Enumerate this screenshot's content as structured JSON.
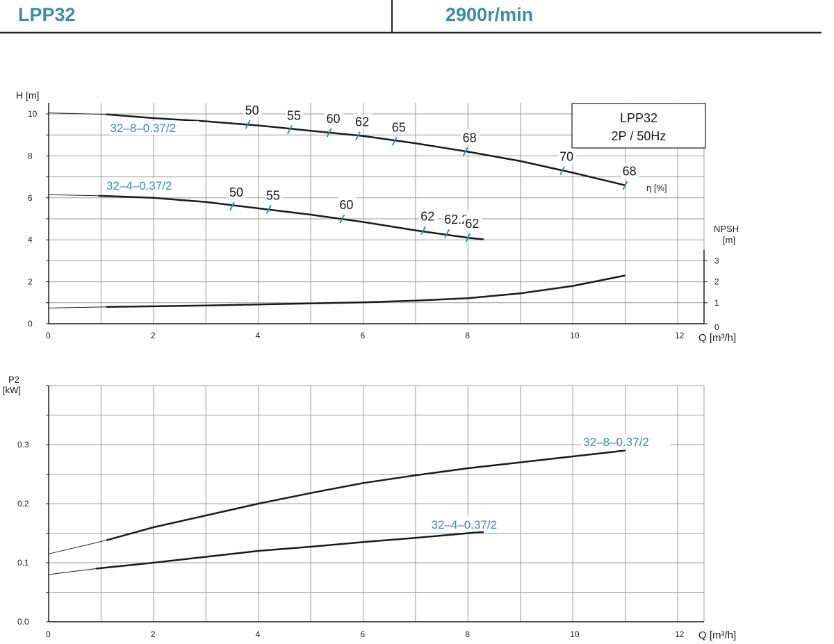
{
  "header": {
    "model": "LPP32",
    "speed": "2900r/min"
  },
  "colors": {
    "accent": "#3a8ea5",
    "line": "#1a1a1a",
    "grid": "#9a9a9a"
  },
  "chart_data": [
    {
      "type": "line",
      "name": "head-chart",
      "ylabel": "H [m]",
      "xlabel": "Q [m³/h]",
      "xlim": [
        0,
        12
      ],
      "ylim": [
        0,
        10
      ],
      "x_ticks": [
        "0",
        "2",
        "4",
        "6",
        "8",
        "10",
        "12"
      ],
      "y_ticks": [
        "0",
        "2",
        "4",
        "6",
        "8",
        "10"
      ],
      "legend_box": [
        "LPP32",
        "2P / 50Hz"
      ],
      "efficiency_label": "η  [%]",
      "npsh_label_1": "NPSH",
      "npsh_label_2": "[m]",
      "npsh_ticks": [
        "0",
        "1",
        "2",
        "3"
      ],
      "npsh_ylim": [
        0,
        3
      ],
      "series": [
        {
          "name": "32–8–0.37/2",
          "thin": [
            [
              0,
              10.05
            ],
            [
              1.1,
              9.98
            ]
          ],
          "thick": [
            [
              1.1,
              9.98
            ],
            [
              2,
              9.8
            ],
            [
              3,
              9.65
            ],
            [
              4,
              9.45
            ],
            [
              5,
              9.2
            ],
            [
              6,
              8.95
            ],
            [
              7,
              8.6
            ],
            [
              8,
              8.2
            ],
            [
              9,
              7.75
            ],
            [
              10,
              7.2
            ],
            [
              11,
              6.6
            ]
          ],
          "label_at": [
            1.2,
            9.3
          ],
          "efficiency": [
            {
              "q": 3.8,
              "label": "50",
              "h": 9.5
            },
            {
              "q": 4.6,
              "label": "55",
              "h": 9.25
            },
            {
              "q": 5.35,
              "label": "60",
              "h": 9.1
            },
            {
              "q": 5.9,
              "label": "62",
              "h": 8.95
            },
            {
              "q": 6.6,
              "label": "65",
              "h": 8.7
            },
            {
              "q": 7.95,
              "label": "68",
              "h": 8.2
            },
            {
              "q": 9.8,
              "label": "70",
              "h": 7.3
            },
            {
              "q": 11.0,
              "label": "68",
              "h": 6.6
            }
          ]
        },
        {
          "name": "32–4–0.37/2",
          "thin": [
            [
              0,
              6.15
            ],
            [
              0.95,
              6.1
            ]
          ],
          "thick": [
            [
              0.95,
              6.1
            ],
            [
              2,
              6.0
            ],
            [
              3,
              5.8
            ],
            [
              4,
              5.5
            ],
            [
              5,
              5.2
            ],
            [
              6,
              4.85
            ],
            [
              7,
              4.45
            ],
            [
              8,
              4.1
            ],
            [
              8.3,
              4.02
            ]
          ],
          "label_at": [
            1.1,
            6.55
          ],
          "efficiency": [
            {
              "q": 3.5,
              "label": "50",
              "h": 5.6
            },
            {
              "q": 4.2,
              "label": "55",
              "h": 5.45
            },
            {
              "q": 5.6,
              "label": "60",
              "h": 5.0
            },
            {
              "q": 7.15,
              "label": "62",
              "h": 4.45
            },
            {
              "q": 7.6,
              "label": "62.2",
              "h": 4.3
            },
            {
              "q": 8.0,
              "label": "62",
              "h": 4.1
            }
          ]
        }
      ],
      "npsh_curve": {
        "thin": [
          [
            0,
            0.75
          ],
          [
            1.1,
            0.8
          ]
        ],
        "thick": [
          [
            1.1,
            0.8
          ],
          [
            2,
            0.83
          ],
          [
            3,
            0.87
          ],
          [
            4,
            0.92
          ],
          [
            5,
            0.97
          ],
          [
            6,
            1.02
          ],
          [
            7,
            1.1
          ],
          [
            8,
            1.22
          ],
          [
            9,
            1.45
          ],
          [
            10,
            1.8
          ],
          [
            11,
            2.3
          ]
        ]
      }
    },
    {
      "type": "line",
      "name": "power-chart",
      "ylabel_1": "P2",
      "ylabel_2": "[kW]",
      "xlabel": "Q [m³/h]",
      "xlim": [
        0,
        12
      ],
      "ylim": [
        0,
        0.4
      ],
      "x_ticks": [
        "0",
        "2",
        "4",
        "6",
        "8",
        "10",
        "12"
      ],
      "y_ticks": [
        {
          "v": 0.0,
          "label": "0.0"
        },
        {
          "v": 0.1,
          "label": "0.1"
        },
        {
          "v": 0.2,
          "label": "0.2"
        },
        {
          "v": 0.3,
          "label": "0.3"
        }
      ],
      "series": [
        {
          "name": "32–8–0.37/2",
          "thin": [
            [
              0,
              0.115
            ],
            [
              1.1,
              0.138
            ]
          ],
          "thick": [
            [
              1.1,
              0.138
            ],
            [
              2,
              0.16
            ],
            [
              3,
              0.18
            ],
            [
              4,
              0.2
            ],
            [
              5,
              0.218
            ],
            [
              6,
              0.235
            ],
            [
              7,
              0.248
            ],
            [
              8,
              0.26
            ],
            [
              9,
              0.27
            ],
            [
              10,
              0.28
            ],
            [
              11,
              0.29
            ]
          ],
          "label_at": [
            10.2,
            0.305
          ]
        },
        {
          "name": "32–4–0.37/2",
          "thin": [
            [
              0,
              0.08
            ],
            [
              0.9,
              0.09
            ]
          ],
          "thick": [
            [
              0.9,
              0.09
            ],
            [
              2,
              0.1
            ],
            [
              3,
              0.11
            ],
            [
              4,
              0.12
            ],
            [
              5,
              0.127
            ],
            [
              6,
              0.135
            ],
            [
              7,
              0.142
            ],
            [
              8,
              0.15
            ],
            [
              8.3,
              0.152
            ]
          ],
          "label_at": [
            7.3,
            0.165
          ]
        }
      ]
    }
  ]
}
